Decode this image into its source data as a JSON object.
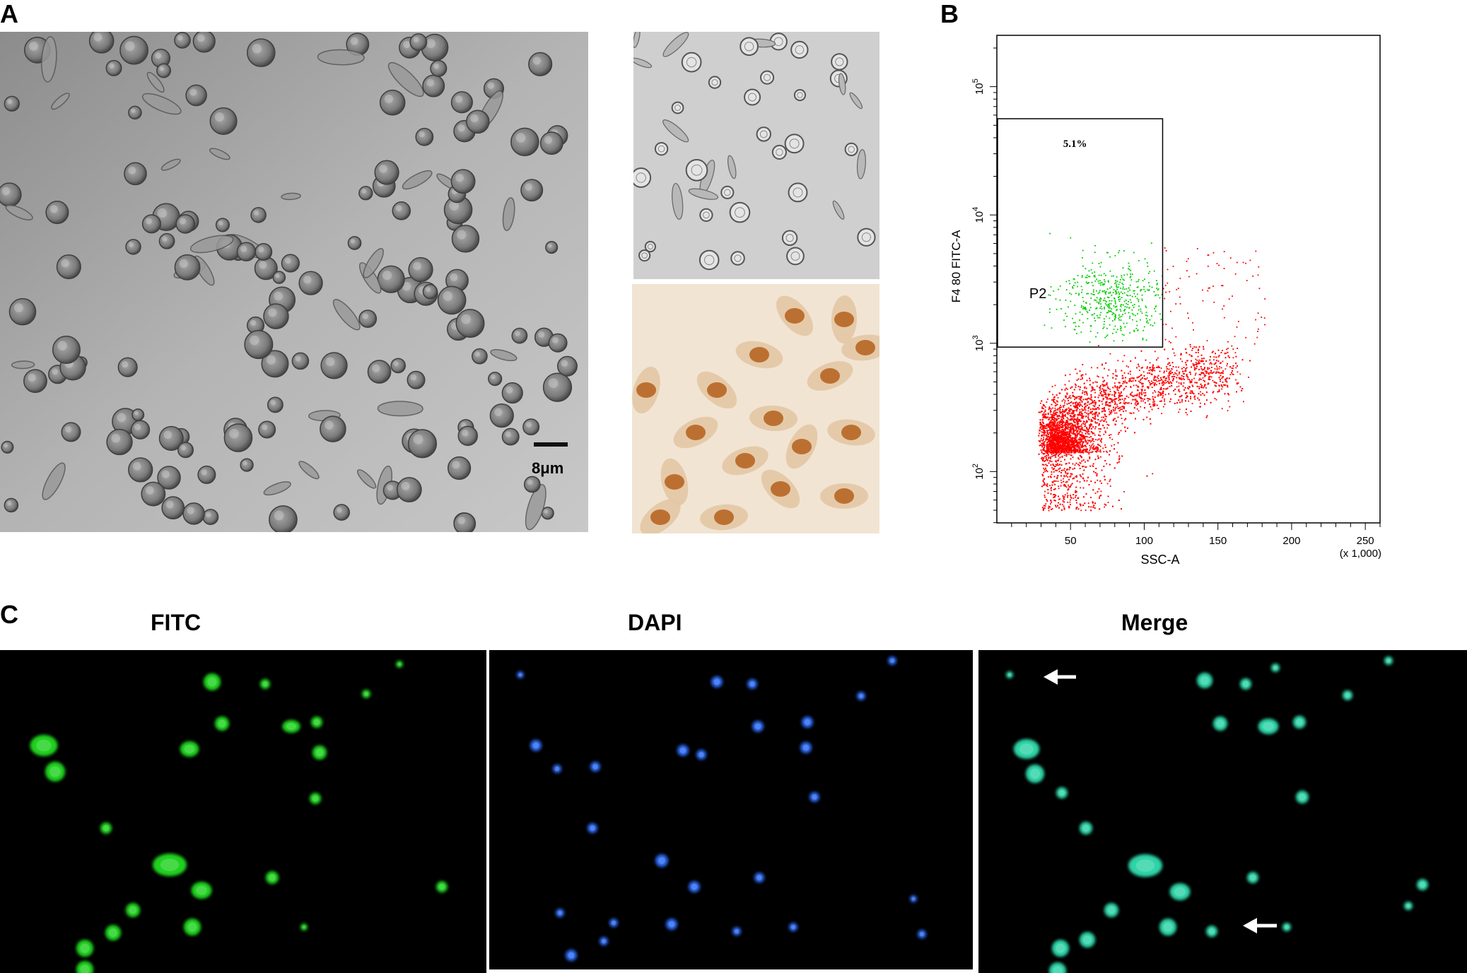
{
  "figure": {
    "panels": {
      "A": {
        "letter": "A",
        "scale_bar_label": "8μm"
      },
      "B": {
        "letter": "B",
        "gate_percent": "5.1%",
        "gate_name": "P2",
        "chart_data": {
          "type": "scatter",
          "xlabel": "SSC-A",
          "x_unit_note": "(x 1,000)",
          "ylabel": "F4 80 FITC-A",
          "x_ticks": [
            "50",
            "100",
            "150",
            "200",
            "250"
          ],
          "y_ticks_base": "10",
          "y_ticks_exp": [
            "2",
            "3",
            "4",
            "5"
          ],
          "xlim": [
            0,
            260
          ],
          "ylim_log10": [
            1.6,
            5.4
          ],
          "y_scale": "log",
          "gate_rect": {
            "x": [
              0,
              112
            ],
            "y_log10": [
              2.97,
              4.75
            ]
          },
          "series": [
            {
              "color": "#ff0000"
            },
            {
              "color": "#00cc00"
            }
          ]
        }
      },
      "C": {
        "letter": "C",
        "channels": [
          {
            "label": "FITC",
            "color": "#22dd22"
          },
          {
            "label": "DAPI",
            "color": "#2f6fff"
          },
          {
            "label": "Merge",
            "color": "#33e0b0"
          }
        ]
      }
    }
  }
}
